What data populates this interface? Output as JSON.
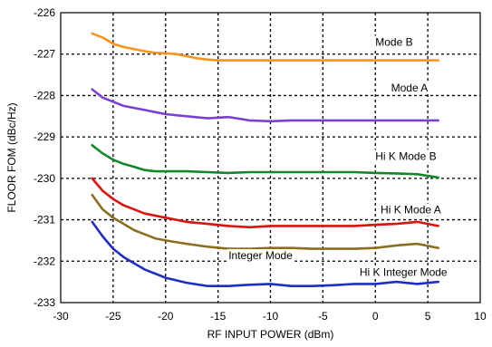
{
  "chart_data": {
    "type": "line",
    "title": "",
    "xlabel": "RF INPUT POWER (dBm)",
    "ylabel": "FLOOR FOM (dBc/Hz)",
    "xlim": [
      -30,
      10
    ],
    "ylim": [
      -233,
      -226
    ],
    "xticks": [
      -30,
      -25,
      -20,
      -15,
      -10,
      -5,
      0,
      5,
      10
    ],
    "yticks": [
      -233,
      -232,
      -231,
      -230,
      -229,
      -228,
      -227,
      -226
    ],
    "grid": true,
    "legend": "none",
    "series": [
      {
        "name": "Mode B",
        "color": "#f7941d",
        "label_at": [
          0,
          -226.8
        ],
        "x": [
          -27,
          -26,
          -25,
          -24,
          -23,
          -22,
          -21,
          -20,
          -19,
          -18,
          -17,
          -16,
          -15,
          -12,
          -9,
          -6,
          -3,
          0,
          3,
          6
        ],
        "y": [
          -226.5,
          -226.6,
          -226.75,
          -226.83,
          -226.88,
          -226.93,
          -226.97,
          -226.98,
          -227.0,
          -227.05,
          -227.1,
          -227.13,
          -227.15,
          -227.15,
          -227.15,
          -227.15,
          -227.15,
          -227.15,
          -227.15,
          -227.15
        ]
      },
      {
        "name": "Mode A",
        "color": "#7b3fd1",
        "label_at": [
          1.5,
          -227.9
        ],
        "x": [
          -27,
          -26,
          -25,
          -24,
          -23,
          -22,
          -21,
          -20,
          -18,
          -16,
          -14,
          -12,
          -10,
          -8,
          -6,
          -4,
          -2,
          0,
          2,
          4,
          6
        ],
        "y": [
          -227.85,
          -228.05,
          -228.15,
          -228.25,
          -228.3,
          -228.35,
          -228.4,
          -228.45,
          -228.5,
          -228.55,
          -228.52,
          -228.6,
          -228.62,
          -228.6,
          -228.6,
          -228.6,
          -228.6,
          -228.6,
          -228.6,
          -228.6,
          -228.6
        ]
      },
      {
        "name": "Hi K Mode B",
        "color": "#13872a",
        "label_at": [
          0,
          -229.55
        ],
        "x": [
          -27,
          -26,
          -25,
          -24,
          -23,
          -22,
          -21,
          -20,
          -18,
          -16,
          -14,
          -12,
          -10,
          -8,
          -6,
          -4,
          -2,
          0,
          2,
          4,
          6
        ],
        "y": [
          -229.2,
          -229.4,
          -229.55,
          -229.65,
          -229.72,
          -229.8,
          -229.83,
          -229.83,
          -229.83,
          -229.85,
          -229.87,
          -229.85,
          -229.85,
          -229.85,
          -229.85,
          -229.85,
          -229.85,
          -229.87,
          -229.88,
          -229.9,
          -229.98
        ]
      },
      {
        "name": "Hi K Mode A",
        "color": "#d9140e",
        "label_at": [
          0.5,
          -230.85
        ],
        "x": [
          -27,
          -26,
          -25,
          -24,
          -23,
          -22,
          -21,
          -20,
          -18,
          -16,
          -14,
          -12,
          -10,
          -8,
          -6,
          -4,
          -2,
          0,
          2,
          4,
          6
        ],
        "y": [
          -230.0,
          -230.3,
          -230.5,
          -230.65,
          -230.75,
          -230.85,
          -230.9,
          -230.95,
          -231.05,
          -231.1,
          -231.15,
          -231.18,
          -231.15,
          -231.15,
          -231.15,
          -231.15,
          -231.15,
          -231.12,
          -231.1,
          -231.05,
          -231.15
        ]
      },
      {
        "name": "Integer Mode",
        "color": "#8b6f1f",
        "label_at": [
          -14,
          -231.95
        ],
        "x": [
          -27,
          -26,
          -25,
          -24,
          -23,
          -22,
          -21,
          -20,
          -18,
          -16,
          -14,
          -12,
          -10,
          -8,
          -6,
          -4,
          -2,
          0,
          2,
          4,
          6
        ],
        "y": [
          -230.4,
          -230.75,
          -230.95,
          -231.1,
          -231.25,
          -231.35,
          -231.45,
          -231.5,
          -231.58,
          -231.65,
          -231.7,
          -231.7,
          -231.68,
          -231.68,
          -231.7,
          -231.7,
          -231.7,
          -231.68,
          -231.62,
          -231.58,
          -231.68
        ]
      },
      {
        "name": "Hi K Integer Mode",
        "color": "#1f2fc4",
        "label_at": [
          -1.5,
          -232.35
        ],
        "x": [
          -27,
          -26,
          -25,
          -24,
          -23,
          -22,
          -21,
          -20,
          -18,
          -16,
          -14,
          -12,
          -10,
          -8,
          -6,
          -4,
          -2,
          0,
          2,
          4,
          6
        ],
        "y": [
          -231.05,
          -231.4,
          -231.7,
          -231.9,
          -232.05,
          -232.2,
          -232.3,
          -232.4,
          -232.52,
          -232.6,
          -232.6,
          -232.57,
          -232.55,
          -232.6,
          -232.6,
          -232.58,
          -232.55,
          -232.55,
          -232.5,
          -232.55,
          -232.5
        ]
      }
    ]
  }
}
